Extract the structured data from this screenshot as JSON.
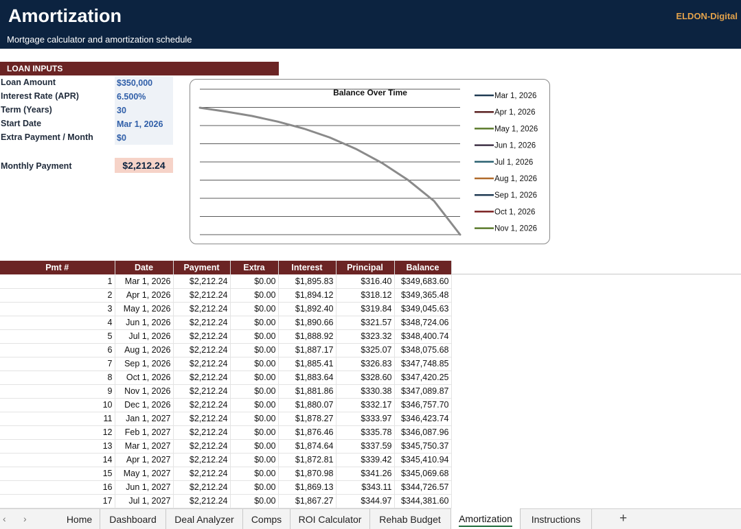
{
  "header": {
    "title": "Amortization",
    "subtitle": "Mortgage calculator and amortization schedule",
    "brand": "ELDON-Digital"
  },
  "inputs": {
    "section_title": "LOAN INPUTS",
    "rows": [
      {
        "label": "Loan Amount",
        "value": "$350,000"
      },
      {
        "label": "Interest Rate (APR)",
        "value": "6.500%"
      },
      {
        "label": "Term (Years)",
        "value": "30"
      },
      {
        "label": "Start Date",
        "value": "Mar 1, 2026"
      },
      {
        "label": "Extra Payment / Month",
        "value": "$0"
      }
    ],
    "monthly_payment_label": "Monthly Payment",
    "monthly_payment_value": "$2,212.24"
  },
  "chart_data": {
    "type": "line",
    "title": "Balance Over Time",
    "xlabel": "",
    "ylabel": "",
    "grid": true,
    "legend_position": "right",
    "series": [
      {
        "name": "Mar 1, 2026",
        "color": "#1f3a52"
      },
      {
        "name": "Apr 1, 2026",
        "color": "#5a2020"
      },
      {
        "name": "May 1, 2026",
        "color": "#5a7a2a"
      },
      {
        "name": "Jun 1, 2026",
        "color": "#3d3045"
      },
      {
        "name": "Jul 1, 2026",
        "color": "#2a6070"
      },
      {
        "name": "Aug 1, 2026",
        "color": "#b06a2a"
      },
      {
        "name": "Sep 1, 2026",
        "color": "#1f3a52"
      },
      {
        "name": "Oct 1, 2026",
        "color": "#7a2020"
      },
      {
        "name": "Nov 1, 2026",
        "color": "#5a7a2a"
      }
    ],
    "balance_curve": {
      "x": [
        0,
        0.1,
        0.2,
        0.3,
        0.4,
        0.5,
        0.6,
        0.7,
        0.8,
        0.9,
        1.0
      ],
      "y": [
        1.0,
        0.97,
        0.935,
        0.89,
        0.835,
        0.765,
        0.675,
        0.565,
        0.43,
        0.265,
        0.0
      ]
    }
  },
  "table": {
    "columns": [
      "Pmt #",
      "Date",
      "Payment",
      "Extra",
      "Interest",
      "Principal",
      "Balance"
    ],
    "rows": [
      [
        "1",
        "Mar 1, 2026",
        "$2,212.24",
        "$0.00",
        "$1,895.83",
        "$316.40",
        "$349,683.60"
      ],
      [
        "2",
        "Apr 1, 2026",
        "$2,212.24",
        "$0.00",
        "$1,894.12",
        "$318.12",
        "$349,365.48"
      ],
      [
        "3",
        "May 1, 2026",
        "$2,212.24",
        "$0.00",
        "$1,892.40",
        "$319.84",
        "$349,045.63"
      ],
      [
        "4",
        "Jun 1, 2026",
        "$2,212.24",
        "$0.00",
        "$1,890.66",
        "$321.57",
        "$348,724.06"
      ],
      [
        "5",
        "Jul 1, 2026",
        "$2,212.24",
        "$0.00",
        "$1,888.92",
        "$323.32",
        "$348,400.74"
      ],
      [
        "6",
        "Aug 1, 2026",
        "$2,212.24",
        "$0.00",
        "$1,887.17",
        "$325.07",
        "$348,075.68"
      ],
      [
        "7",
        "Sep 1, 2026",
        "$2,212.24",
        "$0.00",
        "$1,885.41",
        "$326.83",
        "$347,748.85"
      ],
      [
        "8",
        "Oct 1, 2026",
        "$2,212.24",
        "$0.00",
        "$1,883.64",
        "$328.60",
        "$347,420.25"
      ],
      [
        "9",
        "Nov 1, 2026",
        "$2,212.24",
        "$0.00",
        "$1,881.86",
        "$330.38",
        "$347,089.87"
      ],
      [
        "10",
        "Dec 1, 2026",
        "$2,212.24",
        "$0.00",
        "$1,880.07",
        "$332.17",
        "$346,757.70"
      ],
      [
        "11",
        "Jan 1, 2027",
        "$2,212.24",
        "$0.00",
        "$1,878.27",
        "$333.97",
        "$346,423.74"
      ],
      [
        "12",
        "Feb 1, 2027",
        "$2,212.24",
        "$0.00",
        "$1,876.46",
        "$335.78",
        "$346,087.96"
      ],
      [
        "13",
        "Mar 1, 2027",
        "$2,212.24",
        "$0.00",
        "$1,874.64",
        "$337.59",
        "$345,750.37"
      ],
      [
        "14",
        "Apr 1, 2027",
        "$2,212.24",
        "$0.00",
        "$1,872.81",
        "$339.42",
        "$345,410.94"
      ],
      [
        "15",
        "May 1, 2027",
        "$2,212.24",
        "$0.00",
        "$1,870.98",
        "$341.26",
        "$345,069.68"
      ],
      [
        "16",
        "Jun 1, 2027",
        "$2,212.24",
        "$0.00",
        "$1,869.13",
        "$343.11",
        "$344,726.57"
      ],
      [
        "17",
        "Jul 1, 2027",
        "$2,212.24",
        "$0.00",
        "$1,867.27",
        "$344.97",
        "$344,381.60"
      ]
    ]
  },
  "sheet_tabs": {
    "items": [
      "Home",
      "Dashboard",
      "Deal Analyzer",
      "Comps",
      "ROI Calculator",
      "Rehab Budget",
      "Amortization",
      "Instructions"
    ],
    "active": "Amortization",
    "prev_icon": "‹",
    "next_icon": "›",
    "add_icon": "+"
  }
}
